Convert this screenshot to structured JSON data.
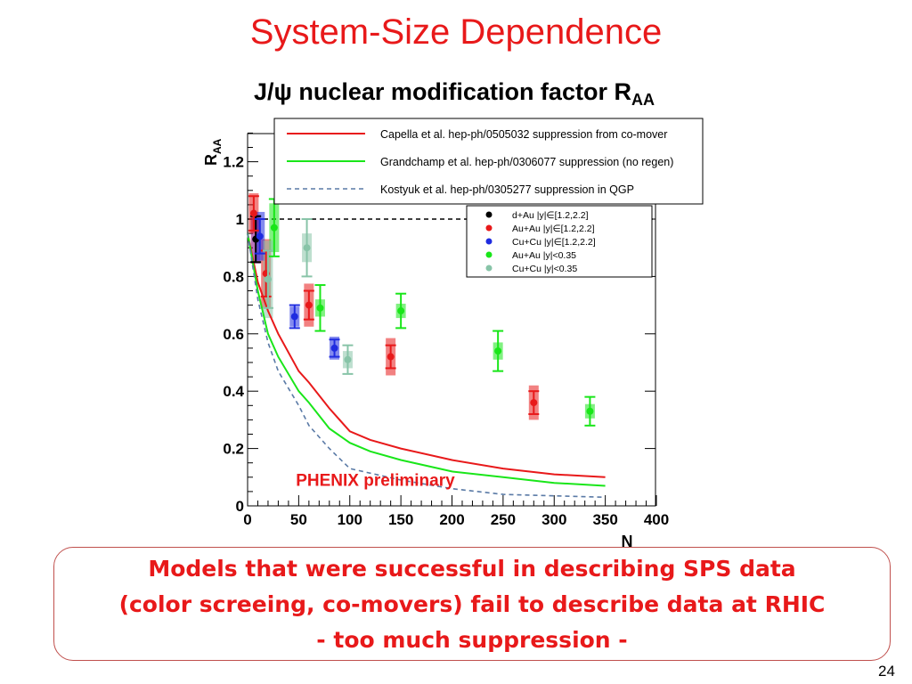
{
  "slide": {
    "title": "System-Size Dependence",
    "page_number": "24"
  },
  "chart_title": {
    "main": "J/ψ nuclear modification factor R",
    "sub": "AA"
  },
  "callout": {
    "lines": [
      "Models that were successful in describing SPS data",
      "(color screeing, co-movers) fail to describe data at RHIC",
      "- too much suppression -"
    ]
  },
  "chart_data": {
    "type": "scatter",
    "title": "J/ψ nuclear modification factor R_AA",
    "xlabel": "N",
    "ylabel": "R_AA",
    "xlim": [
      0,
      400
    ],
    "ylim": [
      0,
      1.3
    ],
    "x_ticks": [
      "0",
      "50",
      "100",
      "150",
      "200",
      "250",
      "300",
      "350",
      "400"
    ],
    "y_ticks": [
      "0",
      "0.2",
      "0.4",
      "0.6",
      "0.8",
      "1",
      "1.2"
    ],
    "reference_line": {
      "y": 1.0,
      "style": "dashed",
      "color": "#000000"
    },
    "annotation": {
      "text": "PHENIX preliminary",
      "color": "#e8191a",
      "x": 125,
      "y": 0.07
    },
    "model_legend": [
      {
        "label": "Capella et al. hep-ph/0505032 suppression from co-mover",
        "color": "#e8191a",
        "dash": "solid"
      },
      {
        "label": "Grandchamp et al. hep-ph/0306077 suppression (no regen)",
        "color": "#19e619",
        "dash": "solid"
      },
      {
        "label": "Kostyuk et al. hep-ph/0305277 suppression in QGP",
        "color": "#5a7aa6",
        "dash": "dashed"
      }
    ],
    "data_legend": [
      {
        "label": "d+Au |y|∈[1.2,2.2]",
        "color": "#000000"
      },
      {
        "label": "Au+Au |y|∈[1.2,2.2]",
        "color": "#e8191a"
      },
      {
        "label": "Cu+Cu |y|∈[1.2,2.2]",
        "color": "#1f2ce0"
      },
      {
        "label": "Au+Au |y|<0.35",
        "color": "#19e619"
      },
      {
        "label": "Cu+Cu |y|<0.35",
        "color": "#88c4a8"
      }
    ],
    "model_curves": [
      {
        "name": "Capella et al.",
        "color": "#e8191a",
        "dash": "solid",
        "points": [
          [
            0,
            0.95
          ],
          [
            10,
            0.78
          ],
          [
            20,
            0.68
          ],
          [
            30,
            0.6
          ],
          [
            50,
            0.47
          ],
          [
            60,
            0.43
          ],
          [
            80,
            0.34
          ],
          [
            100,
            0.26
          ],
          [
            120,
            0.23
          ],
          [
            150,
            0.2
          ],
          [
            200,
            0.16
          ],
          [
            250,
            0.13
          ],
          [
            300,
            0.11
          ],
          [
            350,
            0.1
          ]
        ]
      },
      {
        "name": "Grandchamp et al.",
        "color": "#19e619",
        "dash": "solid",
        "points": [
          [
            0,
            0.95
          ],
          [
            10,
            0.75
          ],
          [
            20,
            0.6
          ],
          [
            30,
            0.52
          ],
          [
            50,
            0.4
          ],
          [
            60,
            0.36
          ],
          [
            80,
            0.27
          ],
          [
            100,
            0.22
          ],
          [
            120,
            0.19
          ],
          [
            150,
            0.16
          ],
          [
            200,
            0.12
          ],
          [
            250,
            0.1
          ],
          [
            300,
            0.08
          ],
          [
            350,
            0.07
          ]
        ]
      },
      {
        "name": "Kostyuk et al.",
        "color": "#5a7aa6",
        "dash": "dashed",
        "points": [
          [
            0,
            0.95
          ],
          [
            10,
            0.72
          ],
          [
            20,
            0.57
          ],
          [
            30,
            0.47
          ],
          [
            50,
            0.35
          ],
          [
            60,
            0.28
          ],
          [
            80,
            0.2
          ],
          [
            100,
            0.13
          ],
          [
            150,
            0.09
          ],
          [
            200,
            0.06
          ],
          [
            250,
            0.04
          ],
          [
            300,
            0.035
          ],
          [
            350,
            0.03
          ]
        ]
      }
    ],
    "series": [
      {
        "name": "d+Au |y|∈[1.2,2.2]",
        "color": "#000000",
        "box_color": "#800080",
        "points": [
          {
            "x": 8,
            "y": 0.93,
            "err": 0.08,
            "box": 0.17
          }
        ]
      },
      {
        "name": "Au+Au |y|∈[1.2,2.2]",
        "color": "#e8191a",
        "box_color": "#e8191a",
        "points": [
          {
            "x": 6,
            "y": 1.02,
            "err": 0.06,
            "box": 0.14
          },
          {
            "x": 18,
            "y": 0.81,
            "err": 0.08,
            "box": 0.24
          },
          {
            "x": 60,
            "y": 0.7,
            "err": 0.05,
            "box": 0.15
          },
          {
            "x": 140,
            "y": 0.52,
            "err": 0.04,
            "box": 0.13
          },
          {
            "x": 280,
            "y": 0.36,
            "err": 0.04,
            "box": 0.12
          }
        ]
      },
      {
        "name": "Cu+Cu |y|∈[1.2,2.2]",
        "color": "#1f2ce0",
        "box_color": "#1f2ce0",
        "points": [
          {
            "x": 12,
            "y": 0.94,
            "err": 0.06,
            "box": 0.17
          },
          {
            "x": 46,
            "y": 0.66,
            "err": 0.04,
            "box": 0.07
          },
          {
            "x": 85,
            "y": 0.55,
            "err": 0.03,
            "box": 0.08
          }
        ]
      },
      {
        "name": "Au+Au |y|<0.35",
        "color": "#19e619",
        "box_color": "#19e619",
        "points": [
          {
            "x": 26,
            "y": 0.97,
            "err": 0.1,
            "box": 0.17
          },
          {
            "x": 71,
            "y": 0.69,
            "err": 0.08,
            "box": 0.06
          },
          {
            "x": 150,
            "y": 0.68,
            "err": 0.06,
            "box": 0.05
          },
          {
            "x": 245,
            "y": 0.54,
            "err": 0.07,
            "box": 0.06
          },
          {
            "x": 335,
            "y": 0.33,
            "err": 0.05,
            "box": 0.05
          }
        ]
      },
      {
        "name": "Cu+Cu |y|<0.35",
        "color": "#88c4a8",
        "box_color": "#88c4a8",
        "points": [
          {
            "x": 20,
            "y": 0.79,
            "err": 0.1,
            "box": 0.27
          },
          {
            "x": 58,
            "y": 0.9,
            "err": 0.1,
            "box": 0.1
          },
          {
            "x": 98,
            "y": 0.51,
            "err": 0.05,
            "box": 0.06
          }
        ]
      }
    ]
  }
}
